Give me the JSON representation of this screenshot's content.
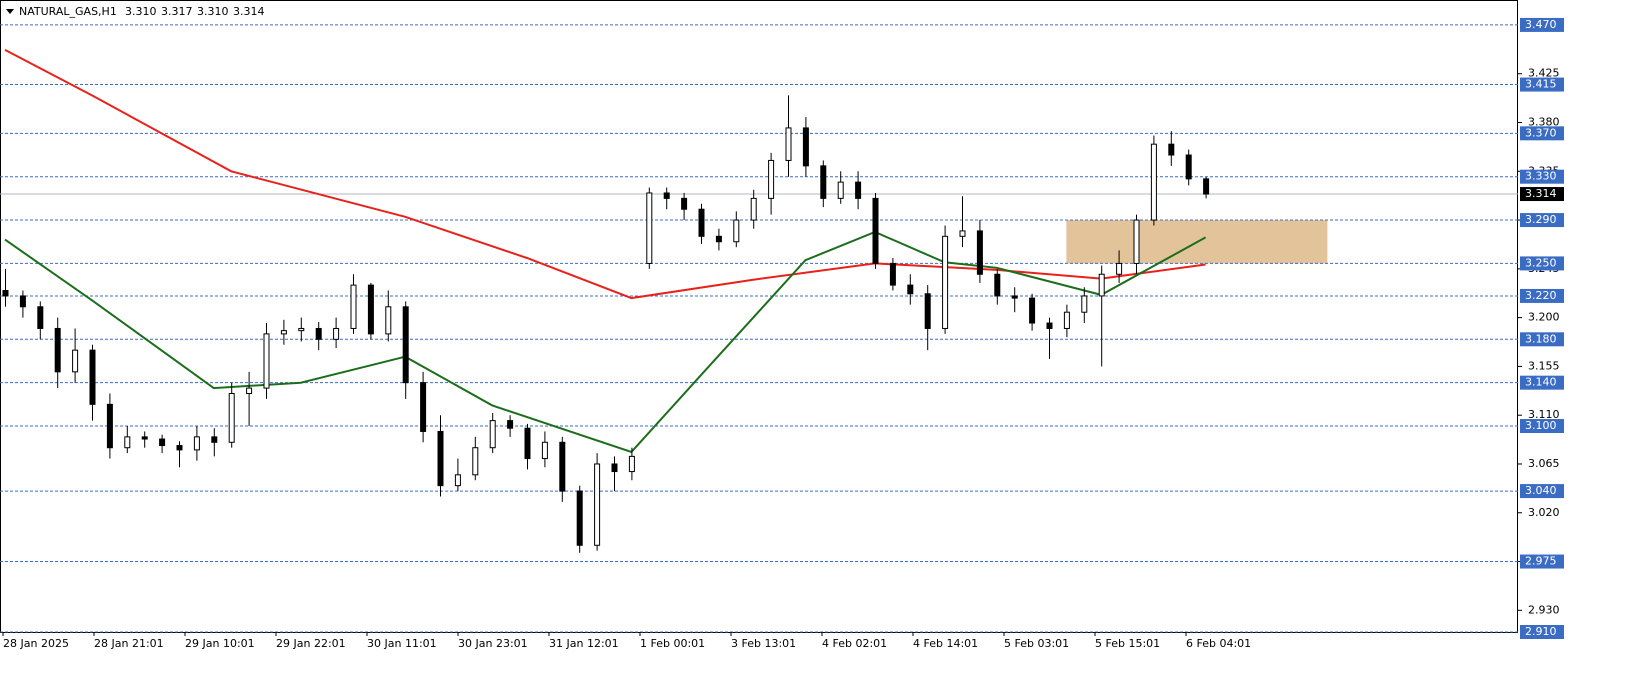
{
  "chart_data": {
    "type": "candlestick",
    "symbol": "NATURAL_GAS,H1",
    "ohlc": [
      "3.310",
      "3.317",
      "3.310",
      "3.314"
    ],
    "ylim": [
      2.91,
      3.493
    ],
    "xlim": [
      0,
      87
    ],
    "yticks": [
      3.425,
      {
        "value": 3.38,
        "label": "3.380"
      },
      3.335,
      {
        "value": 3.29,
        "label": "3.290"
      },
      3.245,
      {
        "value": 3.2,
        "label": "3.200"
      },
      3.155,
      {
        "value": 3.11,
        "label": "3.110"
      },
      3.065,
      {
        "value": 3.02,
        "label": "3.020"
      },
      2.975,
      {
        "value": 2.93,
        "label": "2.930"
      }
    ],
    "levels": [
      {
        "value": 3.47,
        "label": "3.470"
      },
      3.415,
      {
        "value": 3.37,
        "label": "3.370"
      },
      {
        "value": 3.33,
        "label": "3.330"
      },
      {
        "value": 3.29,
        "label": "3.290"
      },
      {
        "value": 3.25,
        "label": "3.250"
      },
      {
        "value": 3.22,
        "label": "3.220"
      },
      {
        "value": 3.18,
        "label": "3.180"
      },
      {
        "value": 3.14,
        "label": "3.140"
      },
      {
        "value": 3.1,
        "label": "3.100"
      },
      {
        "value": 3.04,
        "label": "3.040"
      },
      2.975,
      {
        "value": 2.91,
        "label": "2.910"
      }
    ],
    "last_price": 3.314,
    "x_labels": [
      "28 Jan 2025",
      "28 Jan 21:01",
      "29 Jan 10:01",
      "29 Jan 22:01",
      "30 Jan 11:01",
      "30 Jan 23:01",
      "31 Jan 12:01",
      "1 Feb 00:01",
      "3 Feb 13:01",
      "4 Feb 02:01",
      "4 Feb 14:01",
      "5 Feb 03:01",
      "5 Feb 15:01",
      "6 Feb 04:01"
    ],
    "zone": {
      "x": [
        61,
        76
      ],
      "price": [
        3.29,
        3.25
      ],
      "color": "#deb887"
    },
    "up_color": "#ffffff",
    "down_color": "#000000",
    "candles": [
      [
        3.225,
        3.245,
        3.21,
        3.22
      ],
      [
        3.22,
        3.225,
        3.2,
        3.21
      ],
      [
        3.21,
        3.215,
        3.18,
        3.19
      ],
      [
        3.19,
        3.2,
        3.135,
        3.15
      ],
      [
        3.15,
        3.19,
        3.14,
        3.17
      ],
      [
        3.17,
        3.175,
        3.105,
        3.12
      ],
      [
        3.12,
        3.13,
        3.07,
        3.08
      ],
      [
        3.08,
        3.1,
        3.075,
        3.09
      ],
      [
        3.09,
        3.095,
        3.08,
        3.088
      ],
      [
        3.088,
        3.092,
        3.075,
        3.082
      ],
      [
        3.082,
        3.086,
        3.062,
        3.078
      ],
      [
        3.078,
        3.1,
        3.068,
        3.09
      ],
      [
        3.09,
        3.098,
        3.072,
        3.085
      ],
      [
        3.085,
        3.14,
        3.08,
        3.13
      ],
      [
        3.13,
        3.15,
        3.1,
        3.135
      ],
      [
        3.135,
        3.195,
        3.125,
        3.185
      ],
      [
        3.185,
        3.198,
        3.175,
        3.188
      ],
      [
        3.188,
        3.2,
        3.178,
        3.19
      ],
      [
        3.19,
        3.196,
        3.17,
        3.18
      ],
      [
        3.18,
        3.2,
        3.172,
        3.19
      ],
      [
        3.19,
        3.24,
        3.185,
        3.23
      ],
      [
        3.23,
        3.232,
        3.18,
        3.185
      ],
      [
        3.185,
        3.225,
        3.178,
        3.21
      ],
      [
        3.21,
        3.215,
        3.125,
        3.14
      ],
      [
        3.14,
        3.15,
        3.085,
        3.095
      ],
      [
        3.095,
        3.11,
        3.035,
        3.045
      ],
      [
        3.045,
        3.07,
        3.04,
        3.055
      ],
      [
        3.055,
        3.09,
        3.05,
        3.08
      ],
      [
        3.08,
        3.112,
        3.075,
        3.105
      ],
      [
        3.105,
        3.11,
        3.09,
        3.098
      ],
      [
        3.098,
        3.102,
        3.06,
        3.07
      ],
      [
        3.07,
        3.095,
        3.062,
        3.085
      ],
      [
        3.085,
        3.09,
        3.03,
        3.04
      ],
      [
        3.04,
        3.045,
        2.983,
        2.99
      ],
      [
        2.99,
        3.075,
        2.985,
        3.065
      ],
      [
        3.065,
        3.072,
        3.04,
        3.058
      ],
      [
        3.058,
        3.08,
        3.05,
        3.072
      ],
      [
        3.25,
        3.32,
        3.245,
        3.315
      ],
      [
        3.315,
        3.32,
        3.3,
        3.31
      ],
      [
        3.31,
        3.315,
        3.29,
        3.3
      ],
      [
        3.3,
        3.305,
        3.268,
        3.275
      ],
      [
        3.275,
        3.282,
        3.262,
        3.27
      ],
      [
        3.27,
        3.298,
        3.265,
        3.29
      ],
      [
        3.29,
        3.318,
        3.282,
        3.31
      ],
      [
        3.31,
        3.352,
        3.295,
        3.345
      ],
      [
        3.345,
        3.405,
        3.33,
        3.375
      ],
      [
        3.375,
        3.385,
        3.33,
        3.34
      ],
      [
        3.34,
        3.345,
        3.302,
        3.31
      ],
      [
        3.31,
        3.335,
        3.305,
        3.325
      ],
      [
        3.325,
        3.335,
        3.3,
        3.31
      ],
      [
        3.31,
        3.315,
        3.245,
        3.25
      ],
      [
        3.25,
        3.255,
        3.225,
        3.23
      ],
      [
        3.23,
        3.24,
        3.212,
        3.222
      ],
      [
        3.222,
        3.23,
        3.17,
        3.19
      ],
      [
        3.19,
        3.285,
        3.185,
        3.275
      ],
      [
        3.275,
        3.312,
        3.265,
        3.28
      ],
      [
        3.28,
        3.29,
        3.232,
        3.24
      ],
      [
        3.24,
        3.245,
        3.212,
        3.22
      ],
      [
        3.22,
        3.228,
        3.205,
        3.218
      ],
      [
        3.218,
        3.222,
        3.188,
        3.195
      ],
      [
        3.195,
        3.2,
        3.162,
        3.19
      ],
      [
        3.19,
        3.212,
        3.182,
        3.205
      ],
      [
        3.205,
        3.228,
        3.195,
        3.22
      ],
      [
        3.22,
        3.248,
        3.155,
        3.24
      ],
      [
        3.24,
        3.262,
        3.232,
        3.25
      ],
      [
        3.25,
        3.295,
        3.24,
        3.29
      ],
      [
        3.29,
        3.368,
        3.285,
        3.36
      ],
      [
        3.36,
        3.372,
        3.34,
        3.35
      ],
      [
        3.35,
        3.355,
        3.322,
        3.328
      ],
      [
        3.328,
        3.33,
        3.31,
        3.314
      ]
    ],
    "lines": [
      {
        "color": "#e8221b",
        "x": [
          0,
          5,
          13,
          23,
          30,
          36,
          43,
          50,
          57,
          63,
          69
        ],
        "values": [
          3.447,
          3.405,
          3.335,
          3.293,
          3.255,
          3.218,
          3.235,
          3.25,
          3.244,
          3.236,
          3.249
        ]
      },
      {
        "color": "#1c6e1c",
        "x": [
          0,
          5,
          12,
          17,
          23,
          28,
          36,
          40,
          46,
          50,
          54,
          57,
          63,
          69
        ],
        "values": [
          3.272,
          3.216,
          3.135,
          3.14,
          3.164,
          3.119,
          3.076,
          3.147,
          3.253,
          3.279,
          3.251,
          3.246,
          3.221,
          3.274
        ]
      }
    ]
  }
}
